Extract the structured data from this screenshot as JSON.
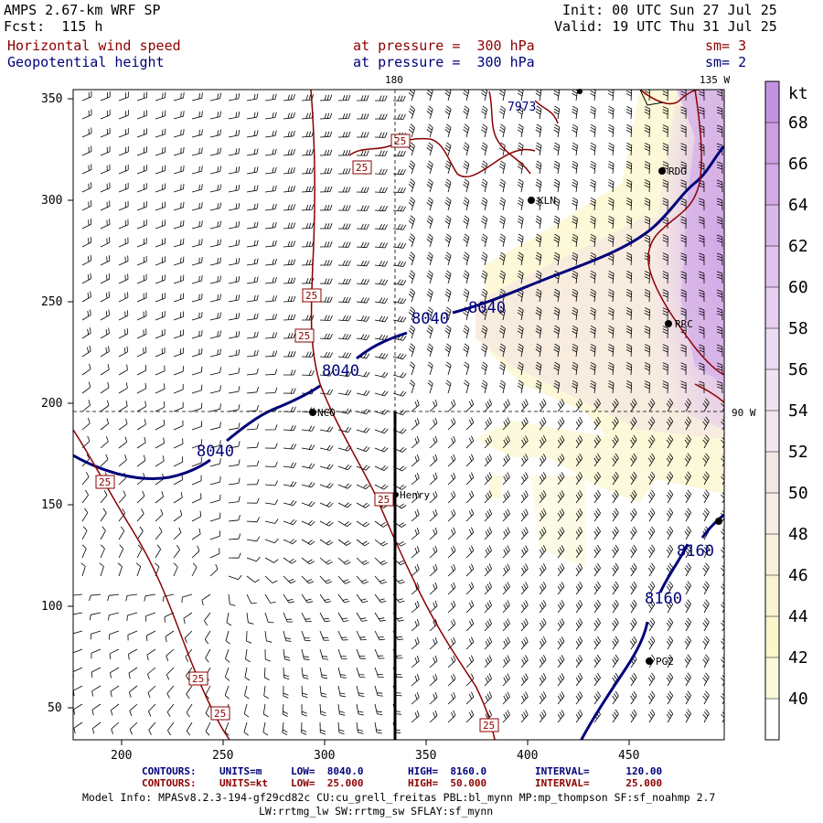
{
  "header": {
    "model_title": "AMPS 2.67-km WRF SP",
    "forecast": "Fcst:  115 h",
    "init": "Init: 00 UTC Sun 27 Jul 25",
    "valid": "Valid: 19 UTC Thu 31 Jul 25",
    "field1_name": "Horizontal wind speed",
    "field1_level": "at pressure =  300 hPa",
    "field1_sm": "sm= 3",
    "field2_name": "Geopotential height",
    "field2_level": "at pressure =  300 hPa",
    "field2_sm": "sm= 2"
  },
  "map": {
    "x_ticks": [
      "200",
      "250",
      "300",
      "350",
      "400",
      "450"
    ],
    "y_ticks": [
      "50",
      "100",
      "150",
      "200",
      "250",
      "300",
      "350"
    ],
    "meridian_top": "180",
    "meridian_corner": "135 W",
    "meridian_right": "90 W",
    "height_contour_labels": [
      "8040",
      "8040",
      "8040",
      "8040",
      "8160",
      "8160",
      "7973"
    ],
    "speed_contour_labels": [
      "25",
      "25",
      "25",
      "25",
      "25",
      "25",
      "25",
      "25"
    ],
    "stations": [
      "NCO",
      "Henry",
      "KLN",
      "RDG",
      "RRC",
      "PG2"
    ]
  },
  "colorbar": {
    "unit": "kt",
    "labels": [
      "68",
      "66",
      "64",
      "62",
      "60",
      "58",
      "56",
      "54",
      "52",
      "50",
      "48",
      "46",
      "44",
      "42",
      "40"
    ],
    "colors": [
      "#c493e0",
      "#cb9fe2",
      "#d2abe6",
      "#d9b8ea",
      "#e0c4ed",
      "#e6cff0",
      "#ecdaf3",
      "#f0e2f2",
      "#f3e6ee",
      "#f5e6e6",
      "#f8ebe3",
      "#faefdc",
      "#fbf3d2",
      "#fbf6cc",
      "#fcf9dd",
      "#ffffff"
    ]
  },
  "footer": {
    "c1_label": "CONTOURS:",
    "c1_units": "UNITS=m",
    "c1_low": "LOW=  8040.0",
    "c1_high": "HIGH=  8160.0",
    "c1_interval": "INTERVAL=      120.00",
    "c2_label": "CONTOURS:",
    "c2_units": "UNITS=kt",
    "c2_low": "LOW=  25.000",
    "c2_high": "HIGH=  50.000",
    "c2_interval": "INTERVAL=      25.000",
    "model_info": "Model Info: MPASv8.2.3-194-gf29cd82c CU:cu_grell_freitas PBL:bl_mynn MP:mp_thompson SF:sf_noahmp 2.7",
    "model_info2": "LW:rrtmg_lw SW:rrtmg_sw SFLAY:sf_mynn"
  }
}
